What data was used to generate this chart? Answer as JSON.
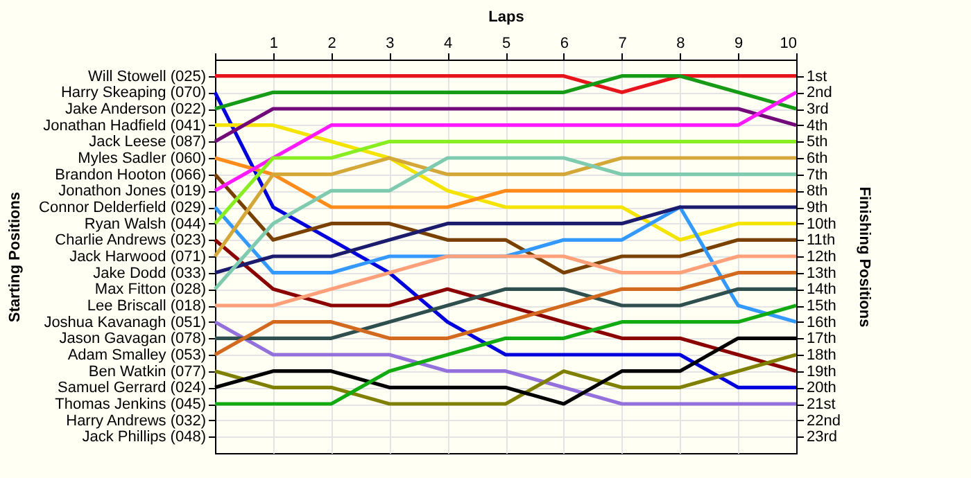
{
  "chart_data": {
    "type": "line",
    "xlabel": "Laps",
    "ylabel": "Finishing Positions",
    "x": [
      0,
      1,
      2,
      3,
      4,
      5,
      6,
      7,
      8,
      9,
      10
    ],
    "xlim": [
      0,
      10
    ],
    "xticks": [
      {
        "value": 0,
        "label": null
      },
      1,
      2,
      3,
      4,
      5,
      6,
      7,
      8,
      9,
      10
    ],
    "ylim": [
      24,
      0
    ],
    "yticks": [
      {
        "value": 1,
        "label": "1st"
      },
      {
        "value": 2,
        "label": "2nd"
      },
      {
        "value": 3,
        "label": "3rd"
      },
      {
        "value": 4,
        "label": "4th"
      },
      {
        "value": 5,
        "label": "5th"
      },
      {
        "value": 6,
        "label": "6th"
      },
      {
        "value": 7,
        "label": "7th"
      },
      {
        "value": 8,
        "label": "8th"
      },
      {
        "value": 9,
        "label": "9th"
      },
      {
        "value": 10,
        "label": "10th"
      },
      {
        "value": 11,
        "label": "11th"
      },
      {
        "value": 12,
        "label": "12th"
      },
      {
        "value": 13,
        "label": "13th"
      },
      {
        "value": 14,
        "label": "14th"
      },
      {
        "value": 15,
        "label": "15th"
      },
      {
        "value": 16,
        "label": "16th"
      },
      {
        "value": 17,
        "label": "17th"
      },
      {
        "value": 18,
        "label": "18th"
      },
      {
        "value": 19,
        "label": "19th"
      },
      {
        "value": 20,
        "label": "20th"
      },
      {
        "value": 21,
        "label": "21st"
      },
      {
        "value": 22,
        "label": "22nd"
      },
      {
        "value": 23,
        "label": "23rd"
      }
    ],
    "annotations": [
      "Will Stowell (025)",
      "Harry Skeaping (070)",
      "Jake Anderson (022)",
      "Jonathan Hadfield (041)",
      "Jack Leese (087)",
      "Myles Sadler (060)",
      "Brandon Hooton (066)",
      "Jonathon Jones (019)",
      "Connor Delderfield (029)",
      "Ryan Walsh (044)",
      "Charlie Andrews (023)",
      "Jack Harwood (071)",
      "Jake Dodd (033)",
      "Max Fitton (028)",
      "Lee Briscall (018)",
      "Joshua Kavanagh (051)",
      "Jason Gavagan (078)",
      "Adam Smalley (053)",
      "Ben Watkin (077)",
      "Samuel Gerrard (024)",
      "Thomas Jenkins (045)",
      "Harry Andrews (032)",
      "Jack Phillips (048)",
      "Starting Positions"
    ],
    "grid": true,
    "marker": "none",
    "line_style": "solid",
    "legend": false,
    "series": [
      {
        "color": "#e8141b",
        "values": [
          1,
          1,
          1,
          1,
          1,
          1,
          1,
          2,
          1,
          1,
          1
        ]
      },
      {
        "color": "#0000dd",
        "values": [
          2,
          9,
          11,
          13,
          16,
          18,
          18,
          18,
          18,
          20,
          20
        ]
      },
      {
        "color": "#169b16",
        "values": [
          3,
          2,
          2,
          2,
          2,
          2,
          2,
          1,
          1,
          2,
          3
        ]
      },
      {
        "color": "#f5e400",
        "values": [
          4,
          4,
          5,
          6,
          8,
          9,
          9,
          9,
          11,
          10,
          10
        ]
      },
      {
        "color": "#720a7a",
        "values": [
          5,
          3,
          3,
          3,
          3,
          3,
          3,
          3,
          3,
          3,
          4
        ]
      },
      {
        "color": "#ff8c1a",
        "values": [
          6,
          7,
          9,
          9,
          9,
          8,
          8,
          8,
          8,
          8,
          8
        ]
      },
      {
        "color": "#7a4000",
        "values": [
          7,
          11,
          10,
          10,
          11,
          11,
          13,
          12,
          12,
          11,
          11
        ]
      },
      {
        "color": "#ff1aff",
        "values": [
          8,
          6,
          4,
          4,
          4,
          4,
          4,
          4,
          4,
          4,
          2
        ]
      },
      {
        "color": "#3399ff",
        "values": [
          9,
          13,
          13,
          12,
          12,
          12,
          11,
          11,
          9,
          15,
          16
        ]
      },
      {
        "color": "#88ee22",
        "values": [
          10,
          6,
          6,
          5,
          5,
          5,
          5,
          5,
          5,
          5,
          5
        ]
      },
      {
        "color": "#8b0000",
        "values": [
          11,
          14,
          15,
          15,
          14,
          15,
          16,
          17,
          17,
          18,
          19
        ]
      },
      {
        "color": "#d4a838",
        "values": [
          12,
          7,
          7,
          6,
          7,
          7,
          7,
          6,
          6,
          6,
          6
        ]
      },
      {
        "color": "#1c1c6e",
        "values": [
          13,
          12,
          12,
          11,
          10,
          10,
          10,
          10,
          9,
          9,
          9
        ]
      },
      {
        "color": "#7ecbb0",
        "values": [
          14,
          10,
          8,
          8,
          6,
          6,
          6,
          7,
          7,
          7,
          7
        ]
      },
      {
        "color": "#ffa07a",
        "values": [
          15,
          15,
          14,
          13,
          12,
          12,
          12,
          13,
          13,
          12,
          12
        ]
      },
      {
        "color": "#9370db",
        "values": [
          16,
          18,
          18,
          18,
          19,
          19,
          20,
          21,
          21,
          21,
          21
        ]
      },
      {
        "color": "#2f4f4f",
        "values": [
          17,
          17,
          17,
          16,
          15,
          14,
          14,
          15,
          15,
          14,
          14
        ]
      },
      {
        "color": "#d2691e",
        "values": [
          18,
          16,
          16,
          17,
          17,
          16,
          15,
          14,
          14,
          13,
          13
        ]
      },
      {
        "color": "#808000",
        "values": [
          19,
          20,
          20,
          21,
          21,
          21,
          19,
          20,
          20,
          19,
          18
        ]
      },
      {
        "color": "#000000",
        "values": [
          20,
          19,
          19,
          20,
          20,
          20,
          21,
          19,
          19,
          17,
          17
        ]
      },
      {
        "color": "#11aa11",
        "values": [
          21,
          21,
          21,
          19,
          18,
          17,
          17,
          16,
          16,
          16,
          15
        ]
      }
    ]
  }
}
